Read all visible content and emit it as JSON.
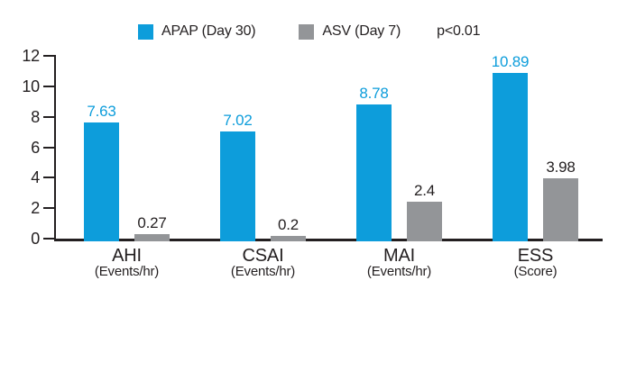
{
  "chart_data": {
    "type": "bar",
    "title": "",
    "categories": [
      "AHI",
      "CSAI",
      "MAI",
      "ESS"
    ],
    "category_units": [
      "(Events/hr)",
      "(Events/hr)",
      "(Events/hr)",
      "(Score)"
    ],
    "series": [
      {
        "name": "APAP (Day 30)",
        "color": "#0d9ddb",
        "values": [
          7.63,
          7.02,
          8.78,
          10.89
        ]
      },
      {
        "name": "ASV (Day 7)",
        "color": "#939598",
        "values": [
          0.27,
          0.2,
          2.4,
          3.98
        ]
      }
    ],
    "annotation": "p<0.01",
    "ylim": [
      0,
      12
    ],
    "yticks": [
      0,
      2,
      4,
      6,
      8,
      10,
      12
    ],
    "grid": false,
    "legend_position": "top",
    "axis_color": "#231f20",
    "value_label_colors": [
      "#0d9ddb",
      "#231f20"
    ]
  }
}
